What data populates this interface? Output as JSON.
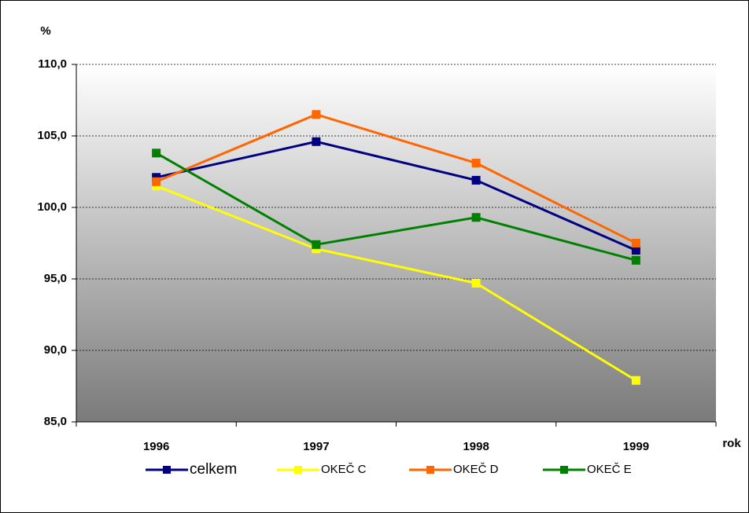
{
  "chart_data": {
    "type": "line",
    "y_label": "%",
    "x_label": "rok",
    "categories": [
      "1996",
      "1997",
      "1998",
      "1999"
    ],
    "series": [
      {
        "name": "celkem",
        "color": "#000080",
        "values": [
          102.1,
          104.6,
          101.9,
          97.0
        ]
      },
      {
        "name": "OKEČ C",
        "color": "#ffff00",
        "values": [
          101.5,
          97.1,
          94.7,
          87.9
        ]
      },
      {
        "name": "OKEČ D",
        "color": "#ff6600",
        "values": [
          101.8,
          106.5,
          103.1,
          97.5
        ]
      },
      {
        "name": "OKEČ E",
        "color": "#008000",
        "values": [
          103.8,
          97.4,
          99.3,
          96.3
        ]
      }
    ],
    "ylim": [
      85,
      110
    ],
    "yticks": [
      {
        "value": 85,
        "label": "85,0"
      },
      {
        "value": 90,
        "label": "90,0"
      },
      {
        "value": 95,
        "label": "95,0"
      },
      {
        "value": 100,
        "label": "100,0"
      },
      {
        "value": 105,
        "label": "105,0"
      },
      {
        "value": 110,
        "label": "110,0"
      }
    ],
    "grid": true
  }
}
